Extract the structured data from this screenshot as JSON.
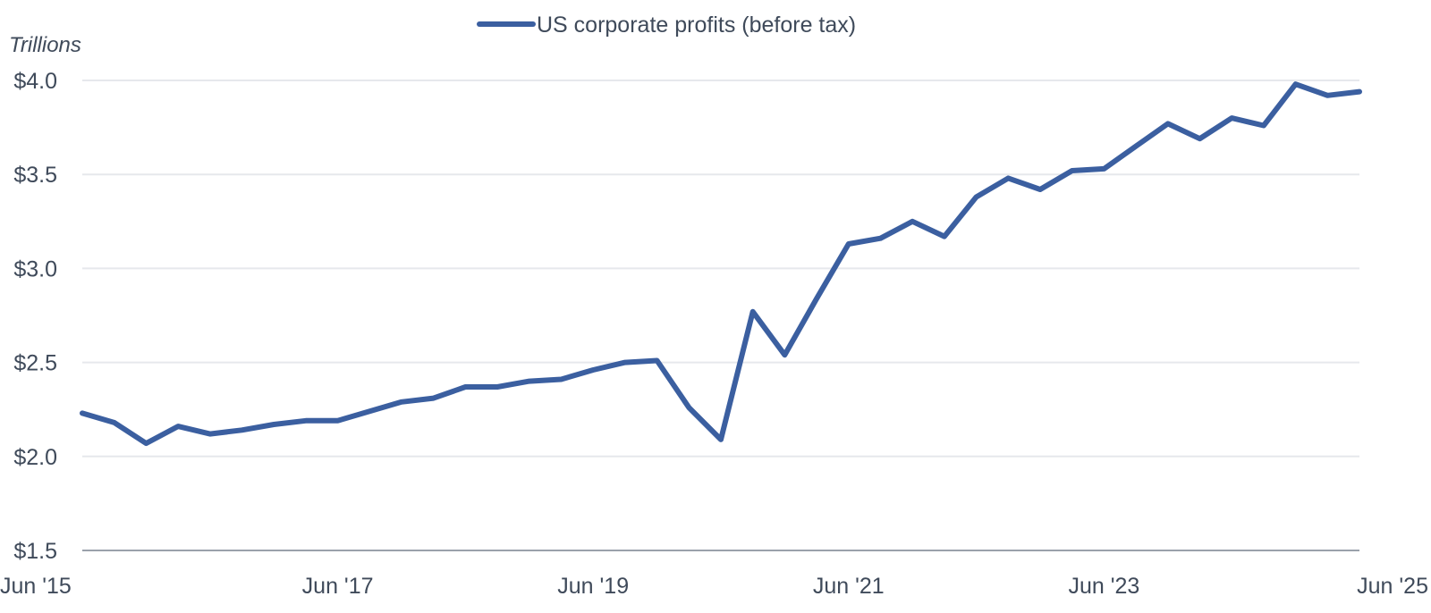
{
  "chart_data": {
    "type": "line",
    "ylabel": "Trillions",
    "ylim": [
      1.5,
      4.0
    ],
    "yticks": [
      1.5,
      2.0,
      2.5,
      3.0,
      3.5,
      4.0
    ],
    "ytick_labels": [
      "$1.5",
      "$2.0",
      "$2.5",
      "$3.0",
      "$3.5",
      "$4.0"
    ],
    "xlim": [
      "2015-06",
      "2025-06"
    ],
    "xticks": [
      "2015-06",
      "2017-06",
      "2019-06",
      "2021-06",
      "2023-06",
      "2025-06"
    ],
    "xtick_labels": [
      "Jun '15",
      "Jun '17",
      "Jun '19",
      "Jun '21",
      "Jun '23",
      "Jun '25"
    ],
    "grid": true,
    "legend_position": "top-center",
    "series": [
      {
        "name": "US corporate profits (before tax)",
        "color": "#3b5fa0",
        "x": [
          "2015-06",
          "2015-09",
          "2015-12",
          "2016-03",
          "2016-06",
          "2016-09",
          "2016-12",
          "2017-03",
          "2017-06",
          "2017-09",
          "2017-12",
          "2018-03",
          "2018-06",
          "2018-09",
          "2018-12",
          "2019-03",
          "2019-06",
          "2019-09",
          "2019-12",
          "2020-03",
          "2020-06",
          "2020-09",
          "2020-12",
          "2021-03",
          "2021-06",
          "2021-09",
          "2021-12",
          "2022-03",
          "2022-06",
          "2022-09",
          "2022-12",
          "2023-03",
          "2023-06",
          "2023-09",
          "2023-12",
          "2024-03",
          "2024-06",
          "2024-09",
          "2024-12",
          "2025-03",
          "2025-06"
        ],
        "values": [
          2.23,
          2.18,
          2.07,
          2.16,
          2.12,
          2.14,
          2.17,
          2.19,
          2.19,
          2.24,
          2.29,
          2.31,
          2.37,
          2.37,
          2.4,
          2.41,
          2.46,
          2.5,
          2.51,
          2.26,
          2.09,
          2.77,
          2.54,
          2.84,
          3.13,
          3.16,
          3.25,
          3.17,
          3.38,
          3.48,
          3.42,
          3.52,
          3.53,
          3.65,
          3.77,
          3.69,
          3.8,
          3.76,
          3.98,
          3.92,
          3.94
        ]
      }
    ]
  }
}
